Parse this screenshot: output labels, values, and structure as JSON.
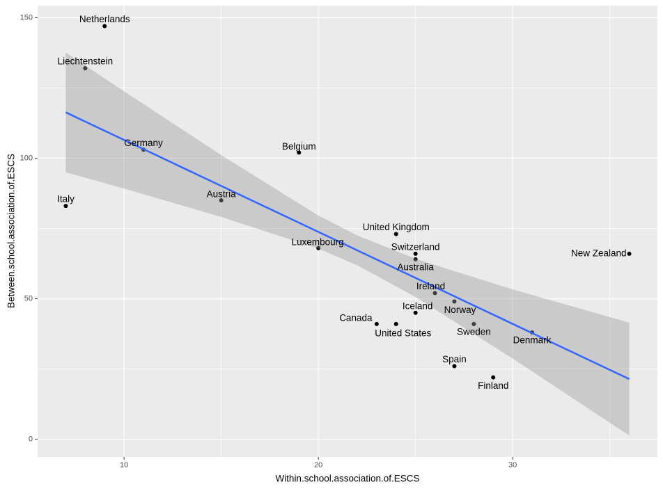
{
  "chart_data": {
    "type": "scatter",
    "x_label": "Within.school.association.of.ESCS",
    "y_label": "Between.school.association.of.ESCS",
    "labels": [
      "Netherlands",
      "Liechtenstein",
      "Germany",
      "Belgium",
      "Italy",
      "Austria",
      "United Kingdom",
      "Luxembourg",
      "Switzerland",
      "Australia",
      "New Zealand",
      "Ireland",
      "Norway",
      "Iceland",
      "Canada",
      "United States",
      "Sweden",
      "Denmark",
      "Spain",
      "Finland"
    ],
    "x": [
      9,
      8,
      11,
      19,
      7,
      15,
      24,
      20,
      25,
      25,
      36,
      26,
      27,
      25,
      23,
      24,
      28,
      31,
      27,
      29
    ],
    "values": [
      147,
      132,
      103,
      102,
      83,
      85,
      73,
      68,
      66,
      64,
      66,
      52,
      49,
      45,
      41,
      41,
      41,
      38,
      26,
      22
    ],
    "color": "#000000",
    "fit": {
      "x": [
        7,
        36
      ],
      "values": [
        116.3,
        21.4
      ],
      "color": "#3366FF"
    },
    "band": {
      "x": [
        7,
        10,
        15,
        20,
        22,
        25,
        30,
        36
      ],
      "upper": [
        137.6,
        123.8,
        101.1,
        79.6,
        72.5,
        64.2,
        53.3,
        41.5
      ],
      "lower": [
        95.0,
        89.2,
        79.1,
        67.8,
        61.9,
        50.6,
        28.7,
        1.3
      ],
      "color": "#999999"
    },
    "xlim": [
      5.55,
      37.45
    ],
    "xticks": [
      10,
      20,
      30
    ],
    "ylim": [
      -6.3,
      154.3
    ],
    "yticks": [
      0,
      50,
      100,
      150
    ],
    "grid": true
  }
}
